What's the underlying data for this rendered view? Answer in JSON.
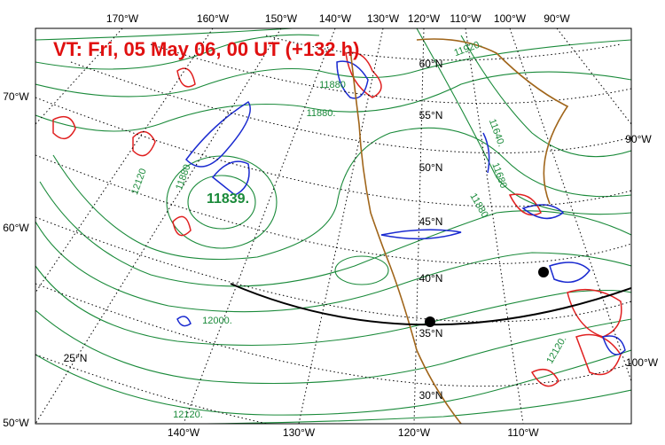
{
  "map": {
    "title": "VT:  Fri, 05 May 06, 00 UT (+132 h)",
    "lon_labels_top": [
      "170°W",
      "160°W",
      "150°W",
      "140°W",
      "130°W",
      "120°W",
      "110°W",
      "100°W",
      "90°W"
    ],
    "lon_labels_bottom": [
      "140°W",
      "130°W",
      "120°W",
      "110°W"
    ],
    "lon_labels_left": [
      "70°W",
      "60°W",
      "50°W"
    ],
    "lon_labels_right": [
      "90°W",
      "100°W"
    ],
    "lat_labels": [
      "60°N",
      "55°N",
      "50°N",
      "45°N",
      "40°N",
      "35°N",
      "30°N",
      "25°N"
    ],
    "contour_labels": [
      "11920.",
      "11880",
      "11880.",
      "11839.",
      "12120",
      "11880",
      "12000.",
      "12120.",
      "11640.",
      "11680",
      "11880",
      "12120."
    ]
  }
}
